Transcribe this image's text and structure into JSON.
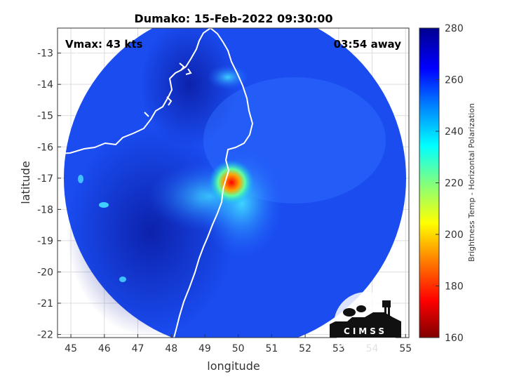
{
  "chart_data": {
    "type": "heatmap",
    "title": "Dumako: 15-Feb-2022 09:30:00",
    "xlabel": "longitude",
    "ylabel": "latitude",
    "xlim": [
      44.6,
      55.1
    ],
    "ylim": [
      -22.1,
      -12.2
    ],
    "x_ticks": [
      45,
      46,
      47,
      48,
      49,
      50,
      51,
      52,
      53,
      54,
      55
    ],
    "y_ticks": [
      -13,
      -14,
      -15,
      -16,
      -17,
      -18,
      -19,
      -20,
      -21,
      -22
    ],
    "grid": true,
    "vmax_label": "Vmax: 43 kts",
    "time_offset_label": "03:54 away",
    "colorbar": {
      "label": "Brightness Temp - Horizontal Polarization",
      "min": 160,
      "max": 280,
      "ticks": [
        160,
        180,
        200,
        220,
        240,
        260,
        280
      ],
      "colormap": [
        "#7f0000",
        "#ff0000",
        "#ff8000",
        "#ffff00",
        "#80ff80",
        "#00ffff",
        "#0080ff",
        "#0000ff",
        "#00008f"
      ]
    },
    "swath_center": [
      49.9,
      -17.3
    ],
    "swath_radius_deg": 5.0,
    "coldest_core": {
      "lon": 49.8,
      "lat": -17.0,
      "value": 185
    },
    "logo_text": "CIMSS"
  }
}
